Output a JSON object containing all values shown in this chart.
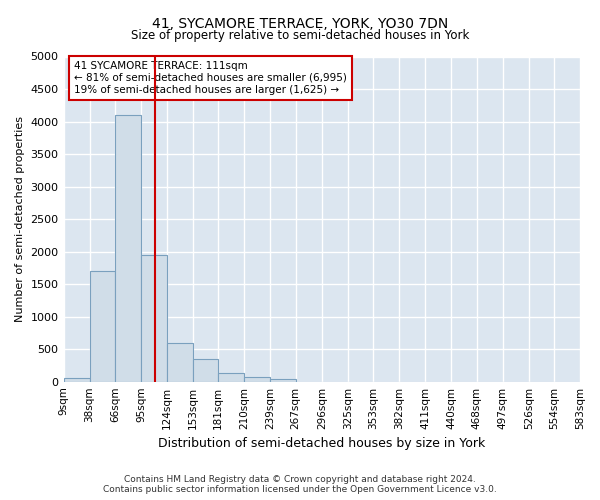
{
  "title": "41, SYCAMORE TERRACE, YORK, YO30 7DN",
  "subtitle": "Size of property relative to semi-detached houses in York",
  "xlabel": "Distribution of semi-detached houses by size in York",
  "ylabel": "Number of semi-detached properties",
  "property_size": 111,
  "property_label": "41 SYCAMORE TERRACE: 111sqm",
  "pct_smaller": 81,
  "count_smaller": 6995,
  "pct_larger": 19,
  "count_larger": 1625,
  "bin_edges": [
    9,
    38,
    66,
    95,
    124,
    153,
    181,
    210,
    239,
    267,
    296,
    325,
    353,
    382,
    411,
    440,
    468,
    497,
    526,
    554,
    583
  ],
  "bin_labels": [
    "9sqm",
    "38sqm",
    "66sqm",
    "95sqm",
    "124sqm",
    "153sqm",
    "181sqm",
    "210sqm",
    "239sqm",
    "267sqm",
    "296sqm",
    "325sqm",
    "353sqm",
    "382sqm",
    "411sqm",
    "440sqm",
    "468sqm",
    "497sqm",
    "526sqm",
    "554sqm",
    "583sqm"
  ],
  "counts": [
    50,
    1700,
    4100,
    1950,
    600,
    350,
    130,
    70,
    35,
    0,
    0,
    0,
    0,
    0,
    0,
    0,
    0,
    0,
    0,
    0
  ],
  "bar_color": "#d0dde8",
  "bar_edge_color": "#7aa0be",
  "vline_color": "#cc0000",
  "box_color": "#cc0000",
  "background_color": "#dce6f0",
  "grid_color": "#ffffff",
  "ylim": [
    0,
    5000
  ],
  "yticks": [
    0,
    500,
    1000,
    1500,
    2000,
    2500,
    3000,
    3500,
    4000,
    4500,
    5000
  ],
  "footer_line1": "Contains HM Land Registry data © Crown copyright and database right 2024.",
  "footer_line2": "Contains public sector information licensed under the Open Government Licence v3.0."
}
